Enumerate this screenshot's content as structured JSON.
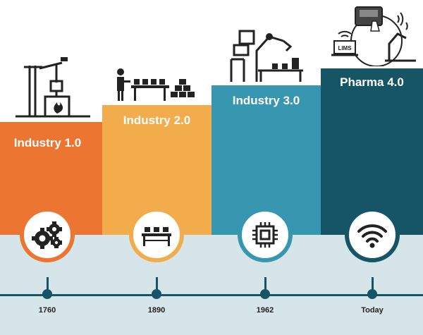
{
  "stages": [
    {
      "label": "Industry 1.0",
      "year": "1760",
      "color": "#ec7532",
      "icon": "gears-icon"
    },
    {
      "label": "Industry 2.0",
      "year": "1890",
      "color": "#f3ac4c",
      "icon": "conveyor-belt-icon"
    },
    {
      "label": "Industry 3.0",
      "year": "1962",
      "color": "#3897b0",
      "icon": "microchip-icon"
    },
    {
      "label": "Pharma 4.0",
      "year": "Today",
      "color": "#155566",
      "icon": "wifi-icon"
    }
  ],
  "lims_label": "LIMS"
}
